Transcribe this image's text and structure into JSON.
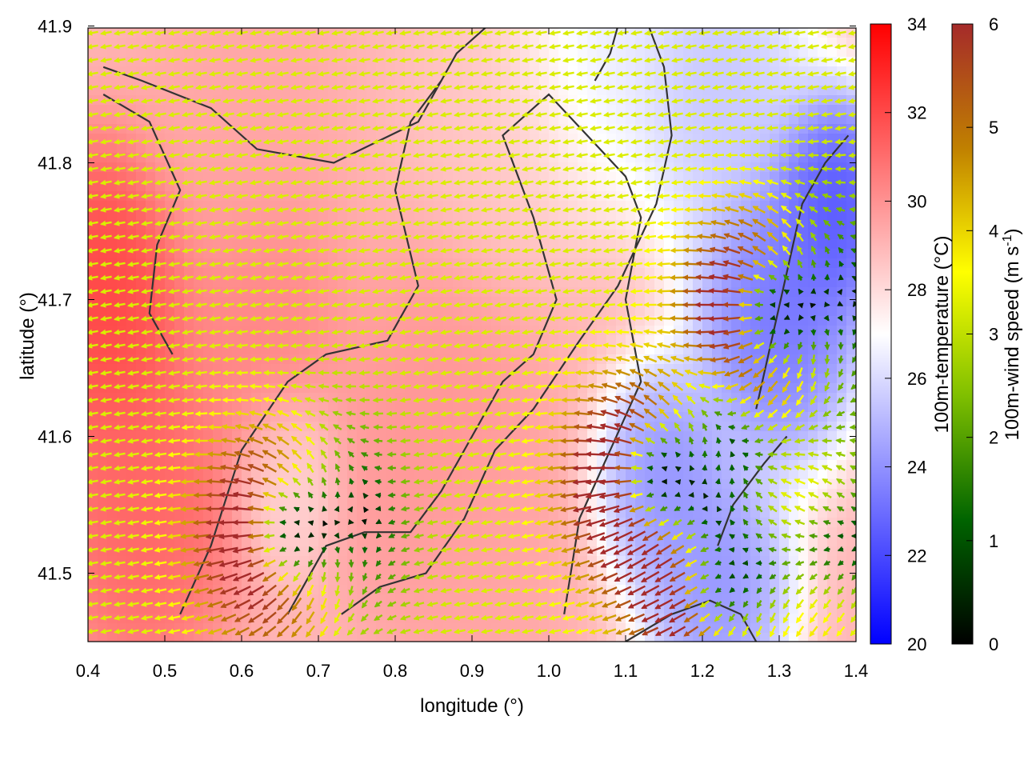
{
  "chart_data": {
    "type": "heatmap",
    "subtype": "temperature field with wind-vector overlay and contour lines",
    "xlabel": "longitude (°)",
    "ylabel": "latitude (°)",
    "xlim": [
      0.4,
      1.4
    ],
    "ylim": [
      41.45,
      41.9
    ],
    "x_ticks": [
      "0.4",
      "0.5",
      "0.6",
      "0.7",
      "0.8",
      "0.9",
      "1.0",
      "1.1",
      "1.2",
      "1.3",
      "1.4"
    ],
    "x_tick_values": [
      0.4,
      0.5,
      0.6,
      0.7,
      0.8,
      0.9,
      1.0,
      1.1,
      1.2,
      1.3,
      1.4
    ],
    "y_ticks": [
      "41.5",
      "41.6",
      "41.7",
      "41.8",
      "41.9"
    ],
    "y_tick_values": [
      41.5,
      41.6,
      41.7,
      41.8,
      41.9
    ],
    "grid": false,
    "temperature_colorbar": {
      "label": "100m-temperature (°C)",
      "range": [
        20,
        34
      ],
      "ticks": [
        "20",
        "22",
        "24",
        "26",
        "28",
        "30",
        "32",
        "34"
      ],
      "tick_values": [
        20,
        22,
        24,
        26,
        28,
        30,
        32,
        34
      ],
      "colors": [
        "#0000ff",
        "#ffffff",
        "#ff0000"
      ],
      "mid_value": 27
    },
    "wind_colorbar": {
      "label_main": "100m-wind speed (m s",
      "label_sup": "-1",
      "label_end": ")",
      "range": [
        0,
        6
      ],
      "ticks": [
        "0",
        "1",
        "2",
        "3",
        "4",
        "5",
        "6"
      ],
      "tick_values": [
        0,
        1,
        2,
        3,
        4,
        5,
        6
      ],
      "colors": [
        "#000000",
        "#006400",
        "#7fbf00",
        "#ffff00",
        "#c08000",
        "#a52a2a"
      ]
    },
    "temperature_features": [
      {
        "lon": 0.42,
        "lat": 41.7,
        "temp": 32.5,
        "radius": 0.08
      },
      {
        "lon": 0.47,
        "lat": 41.55,
        "temp": 31.5,
        "radius": 0.09
      },
      {
        "lon": 0.62,
        "lat": 41.68,
        "temp": 30.5,
        "radius": 0.08
      },
      {
        "lon": 0.66,
        "lat": 41.57,
        "temp": 28.0,
        "radius": 0.05
      },
      {
        "lon": 0.6,
        "lat": 41.83,
        "temp": 29.5,
        "radius": 0.09
      },
      {
        "lon": 0.85,
        "lat": 41.6,
        "temp": 30.0,
        "radius": 0.1
      },
      {
        "lon": 0.9,
        "lat": 41.5,
        "temp": 29.5,
        "radius": 0.08
      },
      {
        "lon": 0.95,
        "lat": 41.84,
        "temp": 28.5,
        "radius": 0.09
      },
      {
        "lon": 1.15,
        "lat": 41.57,
        "temp": 23.5,
        "radius": 0.06
      },
      {
        "lon": 1.3,
        "lat": 41.69,
        "temp": 22.5,
        "radius": 0.08
      },
      {
        "lon": 1.37,
        "lat": 41.77,
        "temp": 21.5,
        "radius": 0.06
      },
      {
        "lon": 1.22,
        "lat": 41.49,
        "temp": 23.5,
        "radius": 0.07
      },
      {
        "lon": 1.22,
        "lat": 41.86,
        "temp": 25.0,
        "radius": 0.09
      },
      {
        "lon": 1.05,
        "lat": 41.88,
        "temp": 26.0,
        "radius": 0.08
      }
    ],
    "background_temperature": 29.0,
    "wind_sources": [
      {
        "lon": 0.67,
        "lat": 41.53,
        "strength": 1.0
      },
      {
        "lon": 1.15,
        "lat": 41.57,
        "strength": 1.1
      },
      {
        "lon": 1.3,
        "lat": 41.69,
        "strength": 1.0
      },
      {
        "lon": 1.23,
        "lat": 41.49,
        "strength": 0.8
      },
      {
        "lon": 1.37,
        "lat": 41.52,
        "strength": 0.6
      }
    ],
    "background_wind": {
      "u": -3.2,
      "v": -0.6,
      "speed": 7.0
    },
    "contour_lines": [
      [
        [
          0.42,
          41.87
        ],
        [
          0.47,
          41.86
        ],
        [
          0.56,
          41.84
        ],
        [
          0.62,
          41.81
        ],
        [
          0.72,
          41.8
        ],
        [
          0.83,
          41.83
        ],
        [
          0.88,
          41.88
        ],
        [
          0.92,
          41.9
        ]
      ],
      [
        [
          0.42,
          41.85
        ],
        [
          0.48,
          41.83
        ],
        [
          0.52,
          41.78
        ],
        [
          0.49,
          41.74
        ],
        [
          0.48,
          41.69
        ],
        [
          0.51,
          41.66
        ]
      ],
      [
        [
          0.52,
          41.47
        ],
        [
          0.56,
          41.52
        ],
        [
          0.6,
          41.59
        ],
        [
          0.66,
          41.64
        ],
        [
          0.71,
          41.66
        ],
        [
          0.79,
          41.67
        ],
        [
          0.83,
          41.71
        ],
        [
          0.8,
          41.78
        ],
        [
          0.82,
          41.83
        ],
        [
          0.86,
          41.86
        ]
      ],
      [
        [
          0.66,
          41.47
        ],
        [
          0.71,
          41.52
        ],
        [
          0.76,
          41.53
        ],
        [
          0.82,
          41.53
        ],
        [
          0.86,
          41.56
        ],
        [
          0.9,
          41.6
        ],
        [
          0.94,
          41.64
        ],
        [
          0.98,
          41.66
        ],
        [
          1.01,
          41.7
        ],
        [
          0.98,
          41.76
        ],
        [
          0.94,
          41.82
        ],
        [
          1.0,
          41.85
        ],
        [
          1.05,
          41.82
        ],
        [
          1.1,
          41.79
        ],
        [
          1.12,
          41.76
        ],
        [
          1.1,
          41.7
        ],
        [
          1.12,
          41.64
        ],
        [
          1.08,
          41.59
        ],
        [
          1.04,
          41.54
        ],
        [
          1.02,
          41.47
        ]
      ],
      [
        [
          0.73,
          41.47
        ],
        [
          0.78,
          41.49
        ],
        [
          0.84,
          41.5
        ],
        [
          0.89,
          41.54
        ],
        [
          0.93,
          41.59
        ],
        [
          0.98,
          41.62
        ],
        [
          1.04,
          41.67
        ],
        [
          1.09,
          41.71
        ],
        [
          1.14,
          41.77
        ],
        [
          1.16,
          41.82
        ],
        [
          1.15,
          41.87
        ],
        [
          1.13,
          41.9
        ]
      ],
      [
        [
          1.1,
          41.45
        ],
        [
          1.16,
          41.47
        ],
        [
          1.21,
          41.48
        ],
        [
          1.25,
          41.47
        ],
        [
          1.27,
          41.45
        ]
      ],
      [
        [
          1.27,
          41.62
        ],
        [
          1.29,
          41.67
        ],
        [
          1.31,
          41.72
        ],
        [
          1.33,
          41.77
        ],
        [
          1.36,
          41.8
        ],
        [
          1.39,
          41.82
        ]
      ],
      [
        [
          1.22,
          41.52
        ],
        [
          1.24,
          41.55
        ],
        [
          1.28,
          41.58
        ],
        [
          1.31,
          41.6
        ]
      ],
      [
        [
          1.06,
          41.86
        ],
        [
          1.08,
          41.88
        ],
        [
          1.09,
          41.9
        ]
      ]
    ]
  }
}
